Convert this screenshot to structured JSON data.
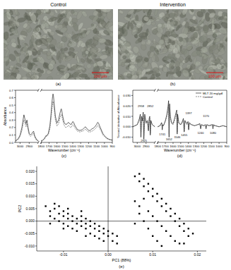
{
  "images": [
    {
      "title": "Control",
      "scale_bar": "100 µm",
      "label": "(a)"
    },
    {
      "title": "Intervention",
      "scale_bar": "100 µm",
      "label": "(b)"
    }
  ],
  "chart_data": [
    {
      "type": "line",
      "label": "(c)",
      "x_label": "Wavenumber (cm⁻¹)",
      "y_label": "Absorbance",
      "xlim": [
        3050,
        900
      ],
      "x_break": [
        2800,
        1800
      ],
      "xticks": [
        3000,
        2900,
        1800,
        1700,
        1600,
        1500,
        1400,
        1300,
        1200,
        1100,
        1000,
        900
      ],
      "ylim": [
        0,
        0.7
      ],
      "yticks": [
        {
          "value": 0,
          "label": "0.0"
        },
        0.1,
        0.2,
        0.3,
        0.4,
        0.5,
        0.6,
        0.7
      ],
      "x": [
        3050,
        3020,
        3000,
        2980,
        2965,
        2958,
        2950,
        2935,
        2925,
        2915,
        2900,
        2885,
        2870,
        2860,
        2852,
        2840,
        2820,
        2800,
        1800,
        1780,
        1760,
        1745,
        1740,
        1730,
        1710,
        1690,
        1675,
        1665,
        1655,
        1650,
        1645,
        1635,
        1620,
        1600,
        1580,
        1565,
        1550,
        1545,
        1540,
        1525,
        1510,
        1490,
        1470,
        1455,
        1440,
        1420,
        1400,
        1390,
        1370,
        1340,
        1310,
        1280,
        1260,
        1240,
        1225,
        1200,
        1180,
        1160,
        1140,
        1120,
        1100,
        1085,
        1075,
        1060,
        1040,
        1020,
        1000,
        970,
        940,
        900
      ],
      "series": [
        {
          "color": "#000000",
          "line_style": "solid",
          "values": [
            0.02,
            0.05,
            0.1,
            0.2,
            0.32,
            0.37,
            0.33,
            0.25,
            0.3,
            0.22,
            0.12,
            0.1,
            0.12,
            0.14,
            0.15,
            0.09,
            0.04,
            0.02,
            0.02,
            0.03,
            0.05,
            0.08,
            0.09,
            0.09,
            0.12,
            0.22,
            0.38,
            0.52,
            0.62,
            0.65,
            0.63,
            0.52,
            0.35,
            0.26,
            0.3,
            0.38,
            0.44,
            0.45,
            0.43,
            0.34,
            0.27,
            0.24,
            0.25,
            0.27,
            0.25,
            0.24,
            0.28,
            0.27,
            0.22,
            0.17,
            0.16,
            0.17,
            0.19,
            0.21,
            0.19,
            0.16,
            0.16,
            0.18,
            0.19,
            0.21,
            0.24,
            0.27,
            0.26,
            0.22,
            0.17,
            0.12,
            0.09,
            0.06,
            0.04,
            0.03
          ]
        },
        {
          "color": "#444444",
          "line_style": "dashed",
          "values": [
            0.02,
            0.04,
            0.08,
            0.16,
            0.26,
            0.3,
            0.27,
            0.21,
            0.25,
            0.18,
            0.1,
            0.08,
            0.1,
            0.11,
            0.12,
            0.07,
            0.03,
            0.02,
            0.02,
            0.03,
            0.04,
            0.07,
            0.08,
            0.08,
            0.1,
            0.18,
            0.31,
            0.43,
            0.52,
            0.55,
            0.53,
            0.44,
            0.3,
            0.22,
            0.25,
            0.32,
            0.37,
            0.38,
            0.36,
            0.29,
            0.23,
            0.2,
            0.21,
            0.23,
            0.21,
            0.2,
            0.24,
            0.23,
            0.19,
            0.15,
            0.14,
            0.15,
            0.16,
            0.18,
            0.16,
            0.14,
            0.14,
            0.15,
            0.16,
            0.18,
            0.2,
            0.23,
            0.22,
            0.19,
            0.15,
            0.1,
            0.08,
            0.05,
            0.04,
            0.03
          ]
        }
      ]
    },
    {
      "type": "line",
      "label": "(d)",
      "x_label": "Wavenumber (cm⁻¹)",
      "y_label": "Second derivative of Absorbance",
      "xlim": [
        3050,
        900
      ],
      "x_break": [
        2800,
        1800
      ],
      "xticks": [
        3000,
        2900,
        1800,
        1700,
        1600,
        1500,
        1400,
        1300,
        1200,
        1100,
        1000,
        900
      ],
      "ylim": [
        -0.015,
        0.035
      ],
      "yticks": [
        {
          "value": -0.01,
          "label": "-0.010"
        },
        {
          "value": 0,
          "label": "0.000"
        },
        {
          "value": 0.01,
          "label": "0.010"
        },
        {
          "value": 0.02,
          "label": "0.020"
        },
        {
          "value": 0.03,
          "label": "0.030"
        }
      ],
      "legend": "upper right",
      "x": [
        3050,
        3000,
        2975,
        2965,
        2958,
        2950,
        2940,
        2932,
        2925,
        2915,
        2900,
        2885,
        2873,
        2865,
        2858,
        2852,
        2845,
        2830,
        2800,
        1800,
        1770,
        1750,
        1745,
        1741,
        1736,
        1725,
        1700,
        1680,
        1665,
        1658,
        1652,
        1645,
        1635,
        1620,
        1600,
        1580,
        1560,
        1552,
        1546,
        1540,
        1525,
        1500,
        1480,
        1465,
        1455,
        1445,
        1420,
        1405,
        1397,
        1388,
        1360,
        1320,
        1280,
        1250,
        1240,
        1230,
        1200,
        1180,
        1170,
        1160,
        1130,
        1100,
        1085,
        1080,
        1075,
        1050,
        1000,
        950,
        900
      ],
      "series": [
        {
          "name": "MLT 20 mg/gdl",
          "color": "#000000",
          "line_style": "solid",
          "values": [
            0.0,
            0.002,
            0.008,
            0.012,
            -0.01,
            0.01,
            0.006,
            0.014,
            -0.012,
            0.012,
            0.004,
            0.006,
            -0.004,
            0.008,
            0.01,
            -0.008,
            0.006,
            0.002,
            0.0,
            0.0,
            0.001,
            0.004,
            0.003,
            -0.003,
            0.002,
            0.001,
            0.006,
            0.012,
            0.02,
            0.025,
            -0.01,
            0.022,
            0.01,
            0.004,
            0.003,
            0.008,
            0.014,
            0.016,
            -0.007,
            0.012,
            0.004,
            0.002,
            0.005,
            0.008,
            -0.005,
            0.006,
            0.003,
            0.005,
            -0.003,
            0.004,
            0.002,
            0.001,
            0.002,
            0.003,
            -0.002,
            0.002,
            0.001,
            0.002,
            -0.002,
            0.002,
            0.001,
            0.002,
            0.002,
            -0.002,
            0.002,
            0.001,
            0.0,
            0.001,
            0.0
          ]
        },
        {
          "name": "Control",
          "color": "#444444",
          "line_style": "dashed",
          "values": [
            0.0,
            0.002,
            0.006,
            0.01,
            -0.007,
            0.008,
            0.005,
            0.011,
            -0.009,
            0.01,
            0.003,
            0.005,
            -0.003,
            0.006,
            0.008,
            -0.006,
            0.005,
            0.002,
            0.0,
            0.0,
            0.001,
            0.003,
            0.002,
            -0.002,
            0.002,
            0.001,
            0.005,
            0.01,
            0.016,
            0.021,
            -0.007,
            0.018,
            0.008,
            0.003,
            0.002,
            0.006,
            0.011,
            0.013,
            -0.005,
            0.01,
            0.003,
            0.002,
            0.004,
            0.006,
            -0.004,
            0.005,
            0.002,
            0.004,
            -0.002,
            0.003,
            0.002,
            0.001,
            0.002,
            0.002,
            -0.001,
            0.002,
            0.001,
            0.002,
            -0.001,
            0.002,
            0.001,
            0.001,
            0.002,
            -0.001,
            0.001,
            0.001,
            0.0,
            0.001,
            0.0
          ]
        }
      ],
      "annotations": [
        {
          "text": "2958",
          "x": 2958,
          "y": 0.019
        },
        {
          "text": "2925",
          "x": 2925,
          "y": -0.014
        },
        {
          "text": "2852",
          "x": 2852,
          "y": 0.019
        },
        {
          "text": "1741",
          "x": 1741,
          "y": -0.008
        },
        {
          "text": "1652",
          "x": 1652,
          "y": -0.013
        },
        {
          "text": "1546",
          "x": 1546,
          "y": -0.011
        },
        {
          "text": "1455",
          "x": 1455,
          "y": -0.009
        },
        {
          "text": "1397",
          "x": 1397,
          "y": 0.012
        },
        {
          "text": "1240",
          "x": 1240,
          "y": -0.007
        },
        {
          "text": "1170",
          "x": 1170,
          "y": 0.009
        },
        {
          "text": "1080",
          "x": 1080,
          "y": -0.007
        }
      ]
    },
    {
      "type": "scatter",
      "label": "(e)",
      "x_label": "PC1 (88%)",
      "y_label": "PC2",
      "xlim": [
        -0.016,
        0.022
      ],
      "xticks": [
        -0.01,
        {
          "value": 0,
          "label": "0.00"
        },
        0.01,
        0.02
      ],
      "ylim": [
        -0.012,
        0.022
      ],
      "yticks": [
        {
          "value": -0.01,
          "label": "-0.010"
        },
        -0.005,
        {
          "value": 0,
          "label": "0.000"
        },
        0.005,
        {
          "value": 0.01,
          "label": "0.010"
        },
        0.015,
        {
          "value": 0.02,
          "label": "0.020"
        }
      ],
      "x": [
        -0.014,
        -0.013,
        -0.013,
        -0.012,
        -0.012,
        -0.011,
        -0.011,
        -0.011,
        -0.01,
        -0.01,
        -0.01,
        -0.009,
        -0.009,
        -0.009,
        -0.008,
        -0.008,
        -0.008,
        -0.007,
        -0.007,
        -0.007,
        -0.006,
        -0.006,
        -0.006,
        -0.005,
        -0.005,
        -0.005,
        -0.004,
        -0.004,
        -0.004,
        -0.003,
        -0.003,
        -0.003,
        -0.002,
        -0.002,
        -0.002,
        -0.001,
        -0.001,
        -0.001,
        0.0,
        0.0,
        0.001,
        0.001,
        0.002,
        0.002,
        -0.012,
        -0.009,
        -0.006,
        -0.013,
        -0.01,
        -0.005,
        0.006,
        0.007,
        0.007,
        0.008,
        0.008,
        0.009,
        0.009,
        0.01,
        0.01,
        0.011,
        0.011,
        0.012,
        0.012,
        0.013,
        0.013,
        0.014,
        0.014,
        0.015,
        0.015,
        0.016,
        0.016,
        0.017,
        0.017,
        0.018,
        0.018,
        0.019,
        0.006,
        0.007,
        0.008,
        0.009,
        0.01,
        0.011,
        0.012,
        0.013,
        0.014,
        0.015,
        0.016,
        0.008,
        0.009,
        0.01,
        0.011,
        0.012,
        0.007,
        0.006,
        0.017
      ],
      "series": [
        {
          "color": "#000000",
          "marker": "square",
          "values": [
            0.006,
            0.004,
            0.002,
            0.005,
            0.001,
            0.003,
            0.0,
            0.006,
            0.002,
            -0.001,
            0.004,
            0.001,
            -0.002,
            0.003,
            0.0,
            -0.003,
            0.002,
            -0.001,
            0.001,
            -0.004,
            0.0,
            -0.002,
            0.002,
            -0.001,
            -0.003,
            0.001,
            -0.002,
            0.0,
            -0.005,
            -0.001,
            -0.003,
            -0.006,
            -0.002,
            -0.004,
            -0.007,
            -0.003,
            -0.005,
            -0.008,
            -0.004,
            -0.006,
            -0.005,
            -0.008,
            -0.006,
            -0.009,
            0.007,
            0.005,
            0.004,
            -0.001,
            -0.003,
            -0.006,
            0.018,
            0.016,
            0.019,
            0.014,
            0.017,
            0.012,
            0.015,
            0.01,
            0.013,
            0.008,
            0.011,
            0.006,
            0.009,
            0.004,
            0.007,
            0.002,
            0.005,
            0.0,
            0.003,
            -0.002,
            0.001,
            -0.004,
            -0.001,
            -0.003,
            -0.006,
            -0.005,
            0.008,
            0.006,
            0.009,
            0.004,
            0.002,
            0.0,
            -0.002,
            -0.004,
            -0.006,
            -0.008,
            -0.009,
            0.0,
            -0.003,
            -0.006,
            -0.008,
            -0.01,
            0.003,
            -0.001,
            -0.009
          ]
        }
      ]
    }
  ]
}
